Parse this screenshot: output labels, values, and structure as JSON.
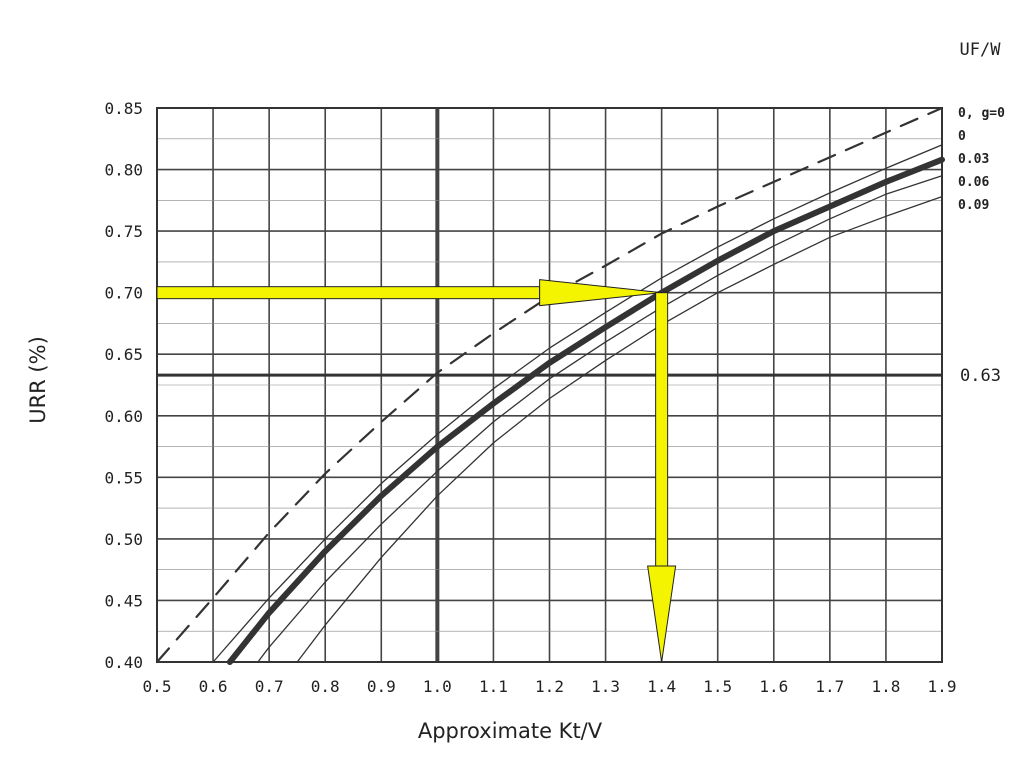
{
  "chart_data": {
    "type": "line",
    "xlabel": "Approximate Kt/V",
    "ylabel": "URR (%)",
    "xlim": [
      0.5,
      1.9
    ],
    "ylim": [
      0.4,
      0.85
    ],
    "x_ticks": [
      "0.5",
      "0.6",
      "0.7",
      "0.8",
      "0.9",
      "1.0",
      "1.1",
      "1.2",
      "1.3",
      "1.4",
      "1.5",
      "1.6",
      "1.7",
      "1.8",
      "1.9"
    ],
    "y_ticks": [
      "0.40",
      "0.45",
      "0.50",
      "0.55",
      "0.60",
      "0.65",
      "0.70",
      "0.75",
      "0.80",
      "0.85"
    ],
    "grid": true,
    "legend_title": "UF/W",
    "legend_position": "right",
    "series": [
      {
        "name": "0, g=0",
        "style": "dashed",
        "x": [
          0.5,
          0.6,
          0.7,
          0.8,
          0.9,
          1.0,
          1.1,
          1.2,
          1.3,
          1.4,
          1.5,
          1.6,
          1.7,
          1.8,
          1.9
        ],
        "y": [
          0.4,
          0.452,
          0.505,
          0.553,
          0.595,
          0.635,
          0.667,
          0.697,
          0.722,
          0.748,
          0.77,
          0.79,
          0.81,
          0.83,
          0.85
        ]
      },
      {
        "name": "0",
        "style": "thin",
        "x": [
          0.6,
          0.7,
          0.8,
          0.9,
          1.0,
          1.1,
          1.2,
          1.3,
          1.4,
          1.5,
          1.6,
          1.7,
          1.8,
          1.9
        ],
        "y": [
          0.4,
          0.452,
          0.5,
          0.545,
          0.585,
          0.622,
          0.655,
          0.684,
          0.712,
          0.737,
          0.76,
          0.781,
          0.801,
          0.82
        ]
      },
      {
        "name": "0.03",
        "style": "bold",
        "x": [
          0.63,
          0.7,
          0.8,
          0.9,
          1.0,
          1.1,
          1.2,
          1.3,
          1.4,
          1.5,
          1.6,
          1.7,
          1.8,
          1.9
        ],
        "y": [
          0.4,
          0.44,
          0.49,
          0.535,
          0.575,
          0.61,
          0.643,
          0.672,
          0.7,
          0.726,
          0.75,
          0.77,
          0.79,
          0.808
        ]
      },
      {
        "name": "0.06",
        "style": "thin",
        "x": [
          0.68,
          0.7,
          0.8,
          0.9,
          1.0,
          1.1,
          1.2,
          1.3,
          1.4,
          1.5,
          1.6,
          1.7,
          1.8,
          1.9
        ],
        "y": [
          0.4,
          0.412,
          0.465,
          0.512,
          0.555,
          0.595,
          0.63,
          0.66,
          0.688,
          0.714,
          0.738,
          0.76,
          0.78,
          0.795
        ]
      },
      {
        "name": "0.09",
        "style": "thin",
        "x": [
          0.75,
          0.8,
          0.9,
          1.0,
          1.1,
          1.2,
          1.3,
          1.4,
          1.5,
          1.6,
          1.7,
          1.8,
          1.9
        ],
        "y": [
          0.4,
          0.43,
          0.485,
          0.535,
          0.578,
          0.614,
          0.645,
          0.674,
          0.7,
          0.723,
          0.745,
          0.762,
          0.778
        ]
      }
    ],
    "reference_line": {
      "y": 0.633,
      "label": "0.63"
    },
    "emphasis_lines": {
      "x": 1.0
    },
    "annotation_arrows": [
      {
        "from": [
          0.5,
          0.7
        ],
        "to": [
          1.4,
          0.7
        ],
        "color": "#f4f400"
      },
      {
        "from": [
          1.4,
          0.7
        ],
        "to": [
          1.4,
          0.4
        ],
        "color": "#f4f400"
      }
    ]
  }
}
